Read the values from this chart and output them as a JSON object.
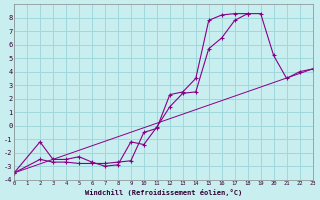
{
  "xlabel": "Windchill (Refroidissement éolien,°C)",
  "background_color": "#c8eef0",
  "grid_color": "#a0d8dc",
  "line_color": "#880088",
  "xlim": [
    0,
    23
  ],
  "ylim": [
    -4,
    9
  ],
  "xticks": [
    0,
    1,
    2,
    3,
    4,
    5,
    6,
    7,
    8,
    9,
    10,
    11,
    12,
    13,
    14,
    15,
    16,
    17,
    18,
    19,
    20,
    21,
    22,
    23
  ],
  "yticks": [
    -4,
    -3,
    -2,
    -1,
    0,
    1,
    2,
    3,
    4,
    5,
    6,
    7,
    8
  ],
  "line1_x": [
    0,
    2,
    3,
    4,
    5,
    6,
    7,
    8,
    9,
    10,
    11,
    12,
    13,
    14,
    15,
    16,
    17,
    18,
    19,
    20,
    21,
    22,
    23
  ],
  "line1_y": [
    -3.5,
    -1.2,
    -2.5,
    -2.5,
    -2.3,
    -2.7,
    -3.0,
    -2.9,
    -1.2,
    -1.4,
    -0.1,
    1.4,
    2.4,
    2.5,
    5.7,
    6.5,
    7.8,
    8.3,
    8.3,
    5.2,
    3.5,
    4.0,
    4.2
  ],
  "line2_x": [
    0,
    2,
    3,
    4,
    5,
    6,
    7,
    8,
    9,
    10,
    11,
    12,
    13,
    14,
    15,
    16,
    17,
    18
  ],
  "line2_y": [
    -3.5,
    -2.5,
    -2.7,
    -2.7,
    -2.8,
    -2.8,
    -2.8,
    -2.7,
    -2.6,
    -0.5,
    -0.2,
    2.3,
    2.5,
    3.5,
    7.8,
    8.2,
    8.3,
    8.3
  ],
  "line3_x": [
    0,
    23
  ],
  "line3_y": [
    -3.5,
    4.2
  ]
}
